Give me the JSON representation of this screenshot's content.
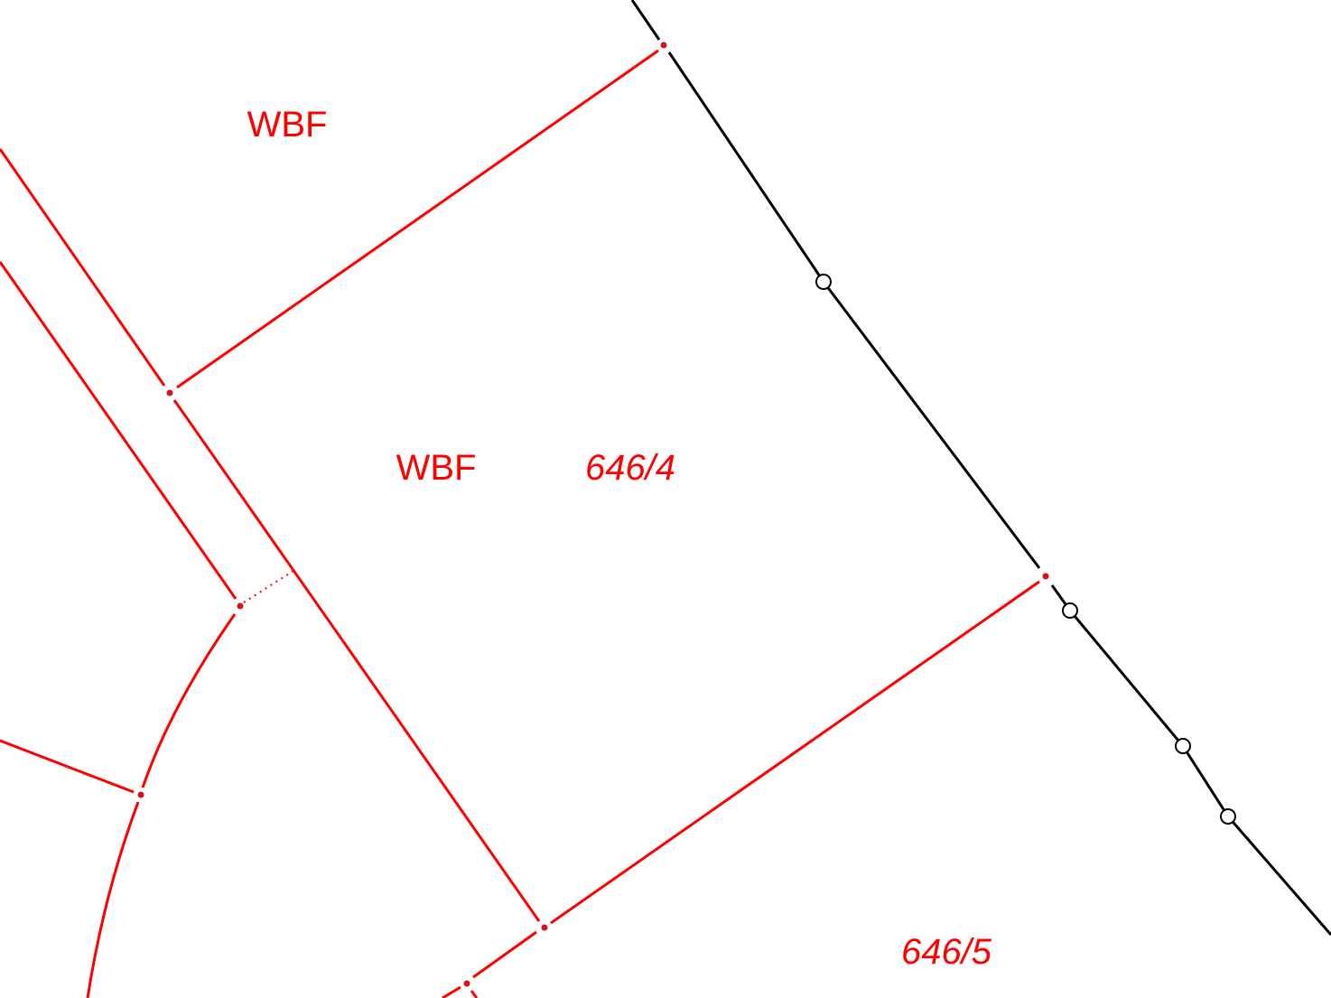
{
  "labels": {
    "land_use_1": "WBF",
    "land_use_2": "WBF",
    "parcel_1": "646/4",
    "parcel_2": "646/5"
  },
  "colors": {
    "parcel_boundary": "#ff0000",
    "point_marker": "#d9101e",
    "reference_line": "#000000"
  }
}
